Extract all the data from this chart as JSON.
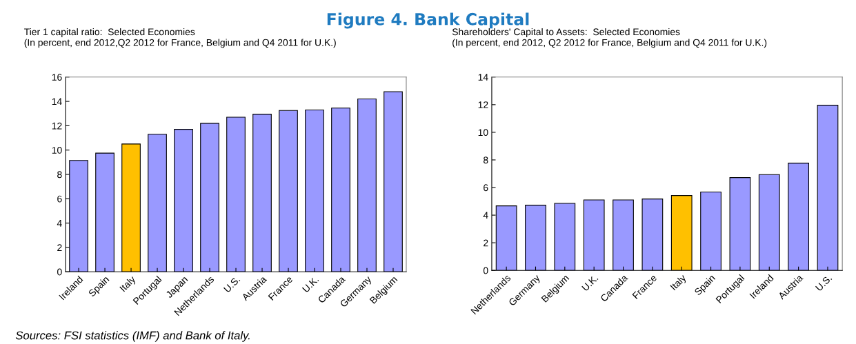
{
  "chart_data": [
    {
      "type": "bar",
      "title": "Tier 1 capital ratio:  Selected Economies",
      "subtitle": "(In percent, end 2012,Q2 2012 for France, Belgium and Q4 2011 for U.K.)",
      "annotations": [
        "Figure 4. Bank Capital",
        "Sources: FSI statistics (IMF) and Bank of Italy."
      ],
      "categories": [
        "Ireland",
        "Spain",
        "Italy",
        "Portugal",
        "Japan",
        "Netherlands",
        "U.S.",
        "Austria",
        "France",
        "U.K.",
        "Canada",
        "Germany",
        "Belgium"
      ],
      "values": [
        9.15,
        9.75,
        10.5,
        11.3,
        11.7,
        12.2,
        12.7,
        12.95,
        13.25,
        13.3,
        13.45,
        14.2,
        14.8
      ],
      "colors": [
        "#9999ff",
        "#9999ff",
        "#ffc000",
        "#9999ff",
        "#9999ff",
        "#9999ff",
        "#9999ff",
        "#9999ff",
        "#9999ff",
        "#9999ff",
        "#9999ff",
        "#9999ff",
        "#9999ff"
      ],
      "ylim": [
        0,
        16
      ],
      "yticks": [
        0,
        2,
        4,
        6,
        8,
        10,
        12,
        14,
        16
      ],
      "grid": false,
      "legend": false
    },
    {
      "type": "bar",
      "title": "Shareholders' Capital to Assets:  Selected Economies",
      "subtitle": "(In percent, end 2012, Q2 2012 for France, Belgium and Q4 2011 for U.K.)",
      "categories": [
        "Netherlands",
        "Germany",
        "Belgium",
        "U.K.",
        "Canada",
        "France",
        "Italy",
        "Spain",
        "Portugal",
        "Ireland",
        "Austria",
        "U.S."
      ],
      "values": [
        4.67,
        4.72,
        4.85,
        5.1,
        5.1,
        5.17,
        5.42,
        5.68,
        6.72,
        6.94,
        7.77,
        11.96
      ],
      "colors": [
        "#9999ff",
        "#9999ff",
        "#9999ff",
        "#9999ff",
        "#9999ff",
        "#9999ff",
        "#ffc000",
        "#9999ff",
        "#9999ff",
        "#9999ff",
        "#9999ff",
        "#9999ff"
      ],
      "ylim": [
        0,
        14
      ],
      "yticks": [
        0,
        2,
        4,
        6,
        8,
        10,
        12,
        14
      ],
      "grid": false,
      "legend": false
    }
  ]
}
